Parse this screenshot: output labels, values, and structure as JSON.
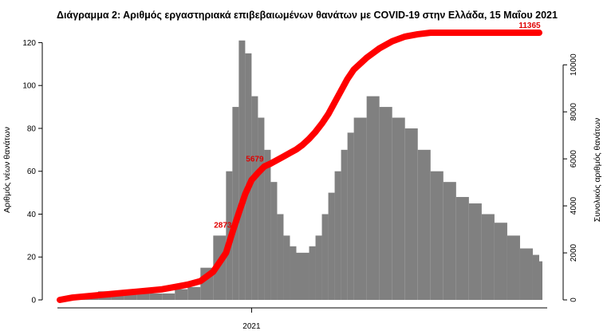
{
  "chart_data": {
    "type": "bar",
    "title": "Διάγραμμα 2: Αριθμός εργαστηριακά επιβεβαιωμένων θανάτων με COVID-19 στην Ελλάδα, 15 Μαΐου 2021",
    "ylabel": "Αριθμός νέων θανάτων",
    "y2label": "Συνολικός αριθμός θανάτων",
    "x_tick_labels": [
      "2021"
    ],
    "ylim": [
      0,
      125
    ],
    "y_ticks": [
      0,
      20,
      40,
      60,
      80,
      100,
      120
    ],
    "y2lim": [
      0,
      11400
    ],
    "y2_ticks": [
      0,
      2000,
      4000,
      6000,
      8000,
      10000
    ],
    "bar_color": "#808080",
    "line_color": "#ff0000",
    "series": [
      {
        "kind": "bar",
        "axis": "left",
        "x": [
          0,
          20,
          40,
          60,
          80,
          100,
          120,
          140,
          160,
          180,
          200,
          220,
          240,
          260,
          270,
          280,
          290,
          300,
          310,
          320,
          330,
          340,
          350,
          360,
          370,
          380,
          390,
          400,
          410,
          420,
          430,
          440,
          450,
          460,
          480,
          500,
          520,
          540,
          560,
          580,
          600,
          620,
          640,
          660,
          680,
          700,
          720,
          740,
          750
        ],
        "values": [
          1,
          2,
          3,
          4,
          3,
          3,
          3,
          3,
          3,
          5,
          6,
          15,
          30,
          60,
          90,
          121,
          115,
          95,
          85,
          70,
          55,
          40,
          30,
          25,
          22,
          22,
          25,
          30,
          40,
          50,
          60,
          70,
          78,
          85,
          95,
          90,
          85,
          80,
          70,
          60,
          55,
          48,
          45,
          40,
          36,
          30,
          24,
          21,
          18
        ]
      },
      {
        "kind": "line",
        "axis": "right",
        "x": [
          0,
          20,
          40,
          60,
          80,
          100,
          120,
          140,
          160,
          180,
          200,
          220,
          240,
          260,
          270,
          280,
          290,
          300,
          310,
          320,
          330,
          340,
          350,
          360,
          370,
          380,
          390,
          400,
          410,
          420,
          430,
          440,
          450,
          460,
          480,
          500,
          520,
          540,
          560,
          580,
          600,
          620,
          640,
          660,
          680,
          700,
          720,
          740,
          750
        ],
        "values": [
          0,
          100,
          150,
          200,
          250,
          300,
          350,
          400,
          450,
          550,
          650,
          800,
          1200,
          2000,
          2873,
          3700,
          4500,
          5100,
          5400,
          5679,
          5800,
          5950,
          6100,
          6250,
          6400,
          6600,
          6850,
          7150,
          7500,
          7900,
          8400,
          8900,
          9400,
          9800,
          10300,
          10700,
          11000,
          11200,
          11300,
          11365,
          11365,
          11365,
          11365,
          11365,
          11365,
          11365,
          11365,
          11365,
          11365
        ]
      }
    ],
    "annotations": [
      {
        "text": "2873",
        "x": 270,
        "y2": 2873
      },
      {
        "text": "5679",
        "x": 320,
        "y2": 5679
      },
      {
        "text": "11365",
        "x": 750,
        "y2": 11365
      }
    ]
  }
}
